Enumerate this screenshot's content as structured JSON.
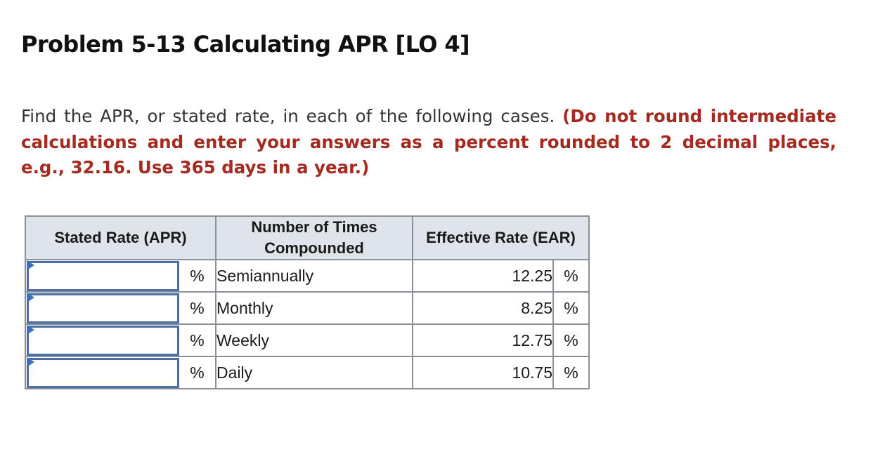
{
  "problem": {
    "title": "Problem 5-13 Calculating APR [LO 4]",
    "instruction_text": "Find the APR, or stated rate, in each of the following cases. ",
    "instruction_note": "(Do not round intermediate calculations and enter your answers as a percent rounded to 2 decimal places, e.g., 32.16. Use 365 days in a year.)"
  },
  "table": {
    "headers": {
      "stated_rate": "Stated Rate (APR)",
      "compounded": "Number of Times Compounded",
      "effective": "Effective Rate (EAR)"
    },
    "rows": [
      {
        "apr_value": "",
        "apr_unit": "%",
        "compounded": "Semiannually",
        "ear": "12.25",
        "ear_unit": "%"
      },
      {
        "apr_value": "",
        "apr_unit": "%",
        "compounded": "Monthly",
        "ear": "8.25",
        "ear_unit": "%"
      },
      {
        "apr_value": "",
        "apr_unit": "%",
        "compounded": "Weekly",
        "ear": "12.75",
        "ear_unit": "%"
      },
      {
        "apr_value": "",
        "apr_unit": "%",
        "compounded": "Daily",
        "ear": "10.75",
        "ear_unit": "%"
      }
    ]
  },
  "colors": {
    "note_red": "#a52a1f",
    "header_bg": "#dfe3ea",
    "input_border": "#4a6fa5",
    "flag_blue": "#3a6fc4"
  }
}
